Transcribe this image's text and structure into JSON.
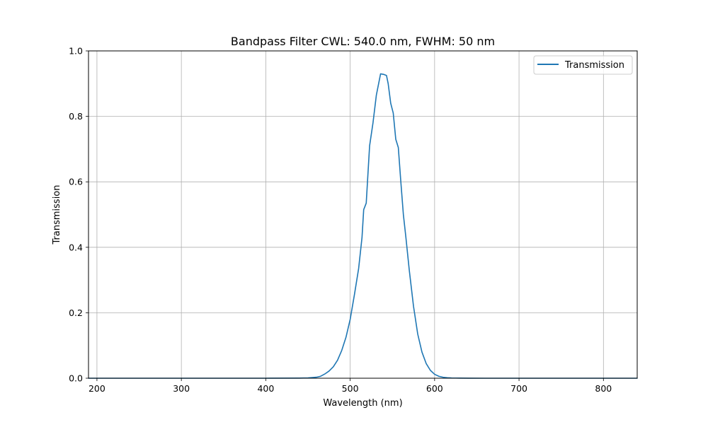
{
  "chart_data": {
    "type": "line",
    "title": "Bandpass Filter CWL: 540.0 nm, FWHM: 50 nm",
    "xlabel": "Wavelength (nm)",
    "ylabel": "Transmission",
    "xlim": [
      190,
      840
    ],
    "ylim": [
      0.0,
      1.0
    ],
    "xticks": [
      200,
      300,
      400,
      500,
      600,
      700,
      800
    ],
    "yticks": [
      0.0,
      0.2,
      0.4,
      0.6,
      0.8,
      1.0
    ],
    "xtick_labels": [
      "200",
      "300",
      "400",
      "500",
      "600",
      "700",
      "800"
    ],
    "ytick_labels": [
      "0.0",
      "0.2",
      "0.4",
      "0.6",
      "0.8",
      "1.0"
    ],
    "grid": true,
    "legend": {
      "position": "top-right",
      "entries": [
        "Transmission"
      ]
    },
    "series": [
      {
        "name": "Transmission",
        "color": "#1f77b4",
        "x": [
          190,
          300,
          400,
          440,
          450,
          460,
          465,
          470,
          475,
          480,
          485,
          490,
          495,
          500,
          505,
          510,
          514,
          516,
          519,
          523,
          527,
          531,
          536,
          540,
          543,
          545,
          548,
          551,
          554,
          557,
          560,
          563,
          566,
          570,
          575,
          580,
          585,
          590,
          595,
          600,
          605,
          610,
          615,
          620,
          630,
          640,
          660,
          700,
          840
        ],
        "values": [
          0.0,
          0.0,
          0.0,
          0.0005,
          0.001,
          0.003,
          0.006,
          0.013,
          0.022,
          0.035,
          0.055,
          0.085,
          0.125,
          0.18,
          0.255,
          0.335,
          0.43,
          0.515,
          0.535,
          0.71,
          0.78,
          0.865,
          0.93,
          0.928,
          0.925,
          0.9,
          0.84,
          0.81,
          0.73,
          0.705,
          0.6,
          0.5,
          0.43,
          0.33,
          0.22,
          0.135,
          0.08,
          0.045,
          0.024,
          0.012,
          0.006,
          0.003,
          0.0015,
          0.0008,
          0.0003,
          0.0001,
          0.0,
          0.0,
          0.0
        ]
      }
    ]
  }
}
